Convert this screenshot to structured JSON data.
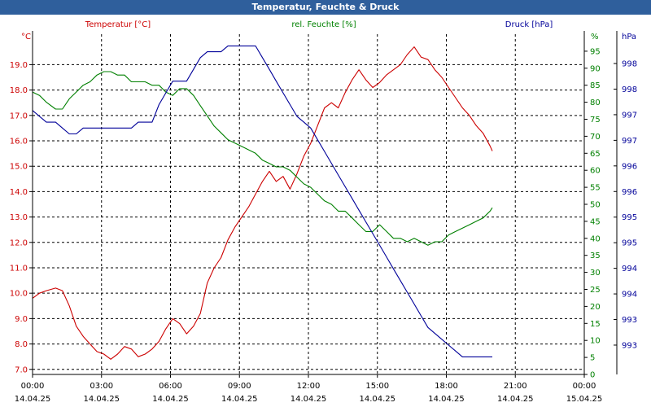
{
  "window": {
    "title": "Temperatur, Feuchte & Druck"
  },
  "chart_data": {
    "type": "line",
    "title": "Temperatur, Feuchte & Druck",
    "x": {
      "min_hours": 0,
      "max_hours": 24,
      "tick_hours": [
        0,
        3,
        6,
        9,
        12,
        15,
        18,
        21,
        24
      ],
      "tick_times": [
        "00:00",
        "03:00",
        "06:00",
        "09:00",
        "12:00",
        "15:00",
        "18:00",
        "21:00",
        "00:00"
      ],
      "tick_dates": [
        "14.04.25",
        "14.04.25",
        "14.04.25",
        "14.04.25",
        "14.04.25",
        "14.04.25",
        "14.04.25",
        "14.04.25",
        "15.04.25"
      ]
    },
    "axes": {
      "temperature": {
        "unit": "°C",
        "label": "Temperatur [°C]",
        "color": "#cc0000",
        "min": 6.8,
        "max": 20.2,
        "ticks": [
          "7.0",
          "8.0",
          "9.0",
          "10.0",
          "11.0",
          "12.0",
          "13.0",
          "14.0",
          "15.0",
          "16.0",
          "17.0",
          "18.0",
          "19.0"
        ]
      },
      "humidity": {
        "unit": "%",
        "label": "rel. Feuchte [%]",
        "color": "#008000",
        "min": 0,
        "max": 100,
        "ticks": [
          "0",
          "5",
          "10",
          "15",
          "20",
          "25",
          "30",
          "35",
          "40",
          "45",
          "50",
          "55",
          "60",
          "65",
          "70",
          "75",
          "80",
          "85",
          "90",
          "95"
        ]
      },
      "pressure": {
        "unit": "hPa",
        "label": "Druck [hPa]",
        "color": "#000099",
        "min": 992.6,
        "max": 998.4,
        "ticks": [
          "993",
          "993",
          "994",
          "994",
          "995",
          "995",
          "996",
          "996",
          "997",
          "997",
          "998",
          "998"
        ]
      }
    },
    "grid": true,
    "series": [
      {
        "name": "Temperatur [°C]",
        "axis": "temperature",
        "color": "#cc0000",
        "x": [
          0,
          0.3,
          0.6,
          1.0,
          1.3,
          1.6,
          1.9,
          2.2,
          2.5,
          2.8,
          3.1,
          3.4,
          3.7,
          4.0,
          4.3,
          4.6,
          4.9,
          5.2,
          5.5,
          5.8,
          6.1,
          6.4,
          6.7,
          7.0,
          7.3,
          7.6,
          7.9,
          8.2,
          8.5,
          8.8,
          9.1,
          9.4,
          9.7,
          10.0,
          10.3,
          10.6,
          10.9,
          11.2,
          11.5,
          11.8,
          12.1,
          12.4,
          12.7,
          13.0,
          13.3,
          13.6,
          13.9,
          14.2,
          14.5,
          14.8,
          15.1,
          15.4,
          15.7,
          16.0,
          16.3,
          16.6,
          16.9,
          17.2,
          17.5,
          17.8,
          18.1,
          18.4,
          18.7,
          19.0,
          19.3,
          19.6,
          19.9,
          20.0
        ],
        "values": [
          9.8,
          10.0,
          10.1,
          10.2,
          10.1,
          9.5,
          8.7,
          8.3,
          8.0,
          7.7,
          7.6,
          7.4,
          7.6,
          7.9,
          7.8,
          7.5,
          7.6,
          7.8,
          8.1,
          8.6,
          9.0,
          8.8,
          8.4,
          8.7,
          9.2,
          10.4,
          11.0,
          11.4,
          12.1,
          12.6,
          13.0,
          13.4,
          13.9,
          14.4,
          14.8,
          14.4,
          14.6,
          14.1,
          14.7,
          15.4,
          15.9,
          16.6,
          17.3,
          17.5,
          17.3,
          17.9,
          18.4,
          18.8,
          18.4,
          18.1,
          18.3,
          18.6,
          18.8,
          19.0,
          19.4,
          19.7,
          19.3,
          19.2,
          18.8,
          18.5,
          18.1,
          17.7,
          17.3,
          17.0,
          16.6,
          16.3,
          15.8,
          15.6
        ]
      },
      {
        "name": "rel. Feuchte [%]",
        "axis": "humidity",
        "color": "#008000",
        "x": [
          0,
          0.3,
          0.6,
          1.0,
          1.3,
          1.6,
          1.9,
          2.2,
          2.5,
          2.8,
          3.1,
          3.4,
          3.7,
          4.0,
          4.3,
          4.6,
          4.9,
          5.2,
          5.5,
          5.8,
          6.1,
          6.4,
          6.7,
          7.0,
          7.3,
          7.6,
          7.9,
          8.2,
          8.5,
          8.8,
          9.1,
          9.4,
          9.7,
          10.0,
          10.3,
          10.6,
          10.9,
          11.2,
          11.5,
          11.8,
          12.1,
          12.4,
          12.7,
          13.0,
          13.3,
          13.6,
          13.9,
          14.2,
          14.5,
          14.8,
          15.1,
          15.4,
          15.7,
          16.0,
          16.3,
          16.6,
          16.9,
          17.2,
          17.5,
          17.8,
          18.1,
          18.4,
          18.7,
          19.0,
          19.3,
          19.6,
          19.9,
          20.0
        ],
        "values": [
          83,
          82,
          80,
          78,
          78,
          81,
          83,
          85,
          86,
          88,
          89,
          89,
          88,
          88,
          86,
          86,
          86,
          85,
          85,
          83,
          82,
          84,
          84,
          82,
          79,
          76,
          73,
          71,
          69,
          68,
          67,
          66,
          65,
          63,
          62,
          61,
          61,
          60,
          58,
          56,
          55,
          53,
          51,
          50,
          48,
          48,
          46,
          44,
          42,
          42,
          44,
          42,
          40,
          40,
          39,
          40,
          39,
          38,
          39,
          39,
          41,
          42,
          43,
          44,
          45,
          46,
          48,
          49
        ]
      },
      {
        "name": "Druck [hPa]",
        "axis": "pressure",
        "color": "#000099",
        "x": [
          0,
          0.3,
          0.6,
          1.0,
          1.3,
          1.6,
          1.9,
          2.2,
          2.5,
          2.8,
          3.1,
          3.4,
          3.7,
          4.0,
          4.3,
          4.6,
          4.9,
          5.2,
          5.5,
          5.8,
          6.1,
          6.4,
          6.7,
          7.0,
          7.3,
          7.6,
          7.9,
          8.2,
          8.5,
          8.8,
          9.1,
          9.4,
          9.7,
          10.0,
          10.3,
          10.6,
          10.9,
          11.2,
          11.5,
          11.8,
          12.1,
          12.4,
          12.7,
          13.0,
          13.3,
          13.6,
          13.9,
          14.2,
          14.5,
          14.8,
          15.1,
          15.4,
          15.7,
          16.0,
          16.3,
          16.6,
          16.9,
          17.2,
          17.5,
          17.8,
          18.1,
          18.4,
          18.7,
          19.0,
          19.3,
          19.6,
          19.9,
          20.0
        ],
        "values": [
          997.1,
          997.0,
          996.9,
          996.9,
          996.8,
          996.7,
          996.7,
          996.8,
          996.8,
          996.8,
          996.8,
          996.8,
          996.8,
          996.8,
          996.8,
          996.9,
          996.9,
          996.9,
          997.2,
          997.4,
          997.6,
          997.6,
          997.6,
          997.8,
          998.0,
          998.1,
          998.1,
          998.1,
          998.2,
          998.2,
          998.2,
          998.2,
          998.2,
          998.0,
          997.8,
          997.6,
          997.4,
          997.2,
          997.0,
          996.9,
          996.8,
          996.6,
          996.4,
          996.2,
          996.0,
          995.8,
          995.6,
          995.4,
          995.2,
          995.0,
          994.8,
          994.6,
          994.4,
          994.2,
          994.0,
          993.8,
          993.6,
          993.4,
          993.3,
          993.2,
          993.1,
          993.0,
          992.9,
          992.9,
          992.9,
          992.9,
          992.9,
          992.9
        ]
      }
    ]
  }
}
